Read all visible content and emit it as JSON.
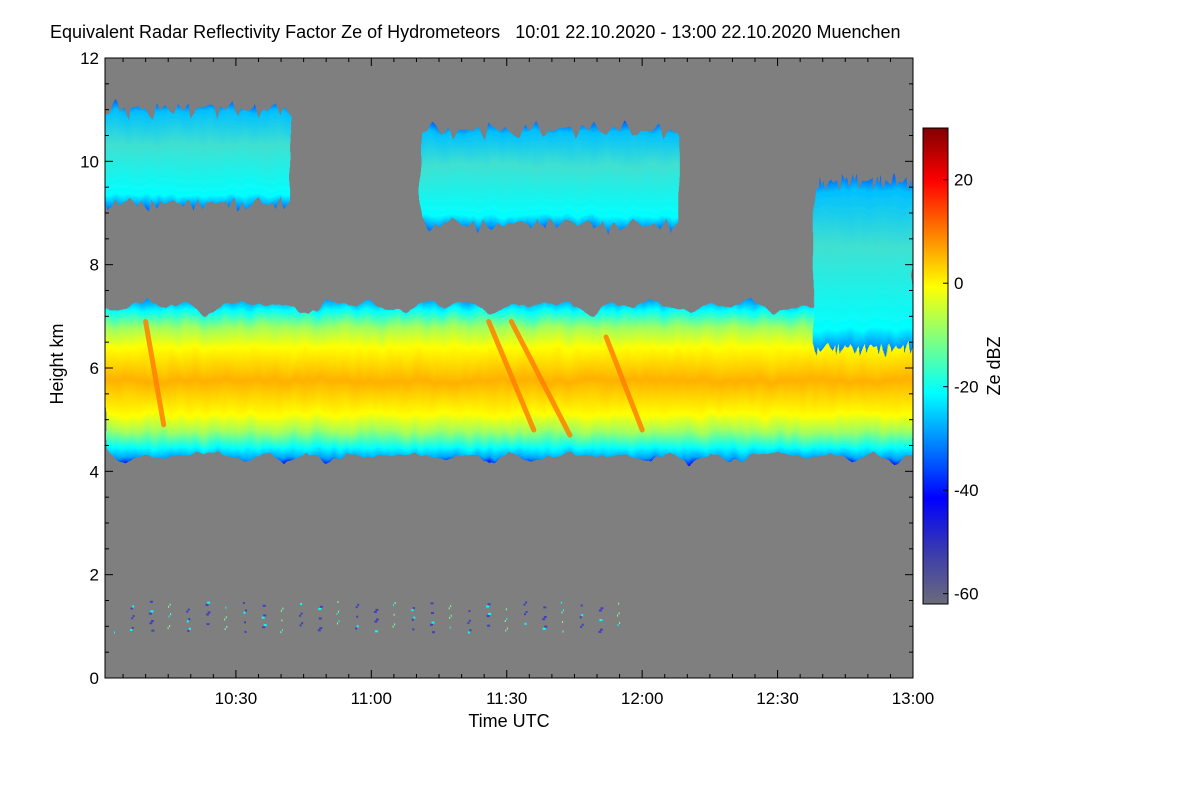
{
  "chart_data": {
    "type": "heatmap",
    "title": "Equivalent Radar Reflectivity Factor Ze of Hydrometeors",
    "subtitle": "10:01 22.10.2020 - 13:00 22.10.2020 Muenchen",
    "xlabel": "Time UTC",
    "ylabel": "Height km",
    "colorbar_label": "Ze dBZ",
    "xlim_minutes_utc": [
      601,
      780
    ],
    "ylim": [
      0,
      12
    ],
    "colorbar_range": [
      -62,
      30
    ],
    "x_ticks": [
      {
        "minute": 630,
        "label": "10:30"
      },
      {
        "minute": 660,
        "label": "11:00"
      },
      {
        "minute": 690,
        "label": "11:30"
      },
      {
        "minute": 720,
        "label": "12:00"
      },
      {
        "minute": 750,
        "label": "12:30"
      },
      {
        "minute": 780,
        "label": "13:00"
      }
    ],
    "y_ticks": [
      {
        "value": 0,
        "label": "0"
      },
      {
        "value": 2,
        "label": "2"
      },
      {
        "value": 4,
        "label": "4"
      },
      {
        "value": 6,
        "label": "6"
      },
      {
        "value": 8,
        "label": "8"
      },
      {
        "value": 10,
        "label": "10"
      },
      {
        "value": 12,
        "label": "12"
      }
    ],
    "colorbar_ticks": [
      {
        "value": 20,
        "label": "20"
      },
      {
        "value": 0,
        "label": "0"
      },
      {
        "value": -20,
        "label": "-20"
      },
      {
        "value": -40,
        "label": "-40"
      },
      {
        "value": -60,
        "label": "-60"
      }
    ],
    "background_color": "#7f7f7f",
    "colormap": [
      "#6b6b7a",
      "#3a3ab0",
      "#0000ff",
      "#0080ff",
      "#00ffff",
      "#80ff80",
      "#ffff00",
      "#ff8000",
      "#ff0000",
      "#800000"
    ],
    "regions": [
      {
        "name": "main-layer",
        "time_range": [
          601,
          780
        ],
        "height_bottom": 4.4,
        "height_top": 7.2,
        "core_dbz": -2
      },
      {
        "name": "upper-cirrus-left",
        "time_range": [
          601,
          642
        ],
        "height_bottom": 9.3,
        "height_top": 11.0,
        "core_dbz": -22
      },
      {
        "name": "upper-cirrus-middle",
        "time_range": [
          671,
          728
        ],
        "height_bottom": 8.9,
        "height_top": 10.6,
        "core_dbz": -20
      },
      {
        "name": "rising-plume-right",
        "time_range": [
          758,
          780
        ],
        "height_bottom": 6.5,
        "height_top": 9.6,
        "core_dbz": -18
      },
      {
        "name": "low-scatter",
        "time_range": [
          603,
          715
        ],
        "height_bottom": 0.9,
        "height_top": 1.5,
        "core_dbz": -40
      }
    ],
    "fall_streaks": [
      {
        "x0": 686,
        "y0": 6.9,
        "x1": 696,
        "y1": 4.8,
        "dbz": 14
      },
      {
        "x0": 691,
        "y0": 6.9,
        "x1": 704,
        "y1": 4.7,
        "dbz": 14
      },
      {
        "x0": 610,
        "y0": 6.9,
        "x1": 614,
        "y1": 4.9,
        "dbz": 10
      },
      {
        "x0": 712,
        "y0": 6.6,
        "x1": 720,
        "y1": 4.8,
        "dbz": 10
      }
    ]
  }
}
